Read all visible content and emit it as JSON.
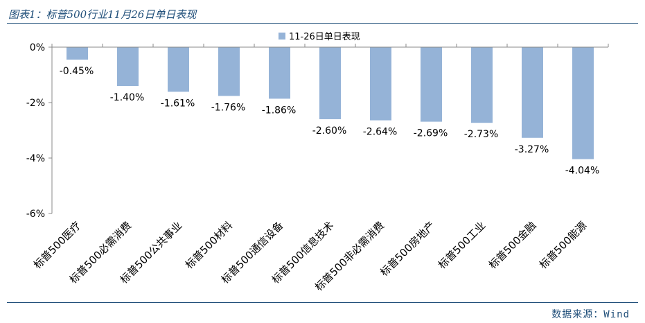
{
  "header": {
    "title": "图表1：标普500行业11月26日单日表现"
  },
  "footer": {
    "source": "数据来源：Wind"
  },
  "chart_data": {
    "type": "bar",
    "title": "",
    "xlabel": "",
    "ylabel": "",
    "legend": {
      "position": "top",
      "label": "11-26日单日表现"
    },
    "ylim": [
      -6,
      0
    ],
    "yticks": [
      0,
      -2,
      -4,
      -6
    ],
    "ytick_labels": [
      "0%",
      "-2%",
      "-4%",
      "-6%"
    ],
    "grid": false,
    "bar_color": "#95b3d7",
    "categories": [
      "标普500医疗",
      "标普500必需消费",
      "标普500公共事业",
      "标普500材料",
      "标普500通信设备",
      "标普500信息技术",
      "标普500非必需消费",
      "标普500房地产",
      "标普500工业",
      "标普500金融",
      "标普500能源"
    ],
    "values": [
      -0.45,
      -1.4,
      -1.61,
      -1.76,
      -1.86,
      -2.6,
      -2.64,
      -2.69,
      -2.73,
      -3.27,
      -4.04
    ],
    "value_labels": [
      "-0.45%",
      "-1.40%",
      "-1.61%",
      "-1.76%",
      "-1.86%",
      "-2.60%",
      "-2.64%",
      "-2.69%",
      "-2.73%",
      "-3.27%",
      "-4.04%"
    ]
  }
}
